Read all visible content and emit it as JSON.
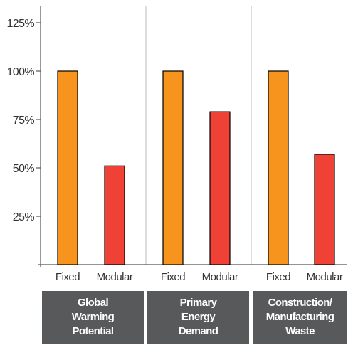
{
  "chart_data": {
    "type": "bar",
    "ylim": [
      0,
      125
    ],
    "yticks": [
      {
        "value": 25,
        "label": "25%"
      },
      {
        "value": 50,
        "label": "50%"
      },
      {
        "value": 75,
        "label": "75%"
      },
      {
        "value": 100,
        "label": "100%"
      },
      {
        "value": 125,
        "label": "125%"
      }
    ],
    "groups": [
      {
        "label_lines": [
          "Global",
          "Warming",
          "Potential"
        ],
        "bars": [
          {
            "category": "Fixed",
            "value": 100,
            "color": "#F7941D"
          },
          {
            "category": "Modular",
            "value": 51,
            "color": "#EF4136"
          }
        ]
      },
      {
        "label_lines": [
          "Primary",
          "Energy",
          "Demand"
        ],
        "bars": [
          {
            "category": "Fixed",
            "value": 100,
            "color": "#F7941D"
          },
          {
            "category": "Modular",
            "value": 79,
            "color": "#EF4136"
          }
        ]
      },
      {
        "label_lines": [
          "Construction/",
          "Manufacturing",
          "Waste"
        ],
        "bars": [
          {
            "category": "Fixed",
            "value": 100,
            "color": "#F7941D"
          },
          {
            "category": "Modular",
            "value": 57,
            "color": "#EF4136"
          }
        ]
      }
    ],
    "colors": {
      "fixed": "#F7941D",
      "modular": "#EF4136",
      "group_box": "#58595B",
      "axis": "#555555",
      "grid": "#BBBBBB"
    }
  }
}
